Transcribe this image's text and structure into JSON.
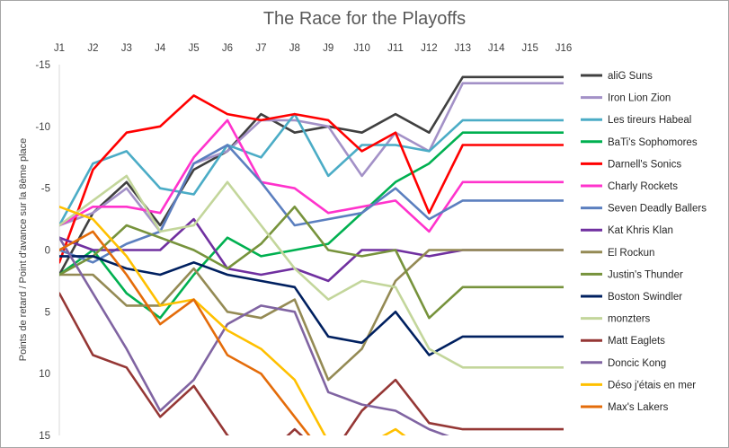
{
  "chart_data": {
    "type": "line",
    "title": "The Race for the Playoffs",
    "ylabel": "Points de retard / Point d'avance sur la 8ème place",
    "xlabel": "",
    "categories": [
      "J1",
      "J2",
      "J3",
      "J4",
      "J5",
      "J6",
      "J7",
      "J8",
      "J9",
      "J10",
      "J11",
      "J12",
      "J13",
      "J14",
      "J15",
      "J16"
    ],
    "ylim": [
      -15,
      15
    ],
    "y_inverted": true,
    "y_ticks": [
      -15,
      -10,
      -5,
      0,
      5,
      10,
      15
    ],
    "grid": false,
    "legend_position": "right",
    "series": [
      {
        "name": "aliG Suns",
        "color": "#404040",
        "values": [
          2,
          -3,
          -5.5,
          -2,
          -6.5,
          -8,
          -11,
          -9.5,
          -10,
          -9.5,
          -11,
          -9.5,
          -14,
          -14,
          -14,
          -14
        ]
      },
      {
        "name": "Iron Lion Zion",
        "color": "#a391c7",
        "values": [
          -2,
          -3,
          -5,
          -1.5,
          -7,
          -8,
          -10.5,
          -10.5,
          -10,
          -6,
          -9.5,
          -8,
          -13.5,
          -13.5,
          -13.5,
          -13.5
        ]
      },
      {
        "name": "Les tireurs Habeal",
        "color": "#4bacc6",
        "values": [
          -2,
          -7,
          -8,
          -5,
          -4.5,
          -8.5,
          -7.5,
          -11,
          -6,
          -8.5,
          -8.5,
          -8,
          -10.5,
          -10.5,
          -10.5,
          -10.5
        ]
      },
      {
        "name": "BaTi's Sophomores",
        "color": "#00b050",
        "values": [
          2,
          0,
          3.5,
          5.5,
          2,
          -1,
          0.5,
          0,
          -0.5,
          -3,
          -5.5,
          -7,
          -9.5,
          -9.5,
          -9.5,
          -9.5
        ]
      },
      {
        "name": "Darnell's Sonics",
        "color": "#ff0000",
        "values": [
          1,
          -6.5,
          -9.5,
          -10,
          -12.5,
          -11,
          -10.5,
          -11,
          -10.5,
          -8,
          -9.5,
          -3,
          -8.5,
          -8.5,
          -8.5,
          -8.5
        ]
      },
      {
        "name": "Charly Rockets",
        "color": "#ff33cc",
        "values": [
          -2,
          -3.5,
          -3.5,
          -3,
          -7.5,
          -10.5,
          -5.5,
          -5,
          -3,
          -3.5,
          -4,
          -1.5,
          -5.5,
          -5.5,
          -5.5,
          -5.5
        ]
      },
      {
        "name": "Seven Deadly Ballers",
        "color": "#5b7fbf",
        "values": [
          0,
          1,
          -0.5,
          -1.5,
          -7,
          -8.5,
          -5.5,
          -2,
          -2.5,
          -3,
          -5,
          -2.5,
          -4,
          -4,
          -4,
          -4
        ]
      },
      {
        "name": "Kat Khris Klan",
        "color": "#7030a0",
        "values": [
          -1,
          0,
          0,
          0,
          -2.5,
          1.5,
          2,
          1.5,
          2.5,
          0,
          0,
          0.5,
          0,
          0,
          0,
          0
        ]
      },
      {
        "name": "El Rockun",
        "color": "#948a54",
        "values": [
          2,
          2,
          4.5,
          4.5,
          1.5,
          5,
          5.5,
          4,
          10.5,
          8,
          2.5,
          0,
          0,
          0,
          0,
          0
        ]
      },
      {
        "name": "Justin's Thunder",
        "color": "#77933c",
        "values": [
          2,
          0.5,
          -2,
          -1,
          0,
          1.5,
          -0.5,
          -3.5,
          0,
          0.5,
          0,
          5.5,
          3,
          3,
          3,
          3
        ]
      },
      {
        "name": "Boston Swindler",
        "color": "#002060",
        "values": [
          0.5,
          0.5,
          1.5,
          2,
          1,
          2,
          2.5,
          3,
          7,
          7.5,
          5,
          8.5,
          7,
          7,
          7,
          7
        ]
      },
      {
        "name": "monzters",
        "color": "#c3d69b",
        "values": [
          -2,
          -4,
          -6,
          -1.5,
          -2,
          -5.5,
          -2,
          1.5,
          4,
          2.5,
          3,
          8,
          9.5,
          9.5,
          9.5,
          9.5
        ]
      },
      {
        "name": "Matt Eaglets",
        "color": "#953735",
        "values": [
          3.5,
          8.5,
          9.5,
          13.5,
          11,
          15,
          17,
          14.5,
          17,
          13,
          10.5,
          14,
          14.5,
          14.5,
          14.5,
          14.5
        ]
      },
      {
        "name": "Doncic Kong",
        "color": "#8064a2",
        "values": [
          -1,
          3.5,
          8,
          13,
          10.5,
          6,
          4.5,
          5,
          11.5,
          12.5,
          13,
          14.5,
          15.5,
          15.5,
          15.5,
          15.5
        ]
      },
      {
        "name": "Déso j'étais en mer",
        "color": "#ffc000",
        "values": [
          -3.5,
          -2.5,
          0.5,
          4.5,
          4,
          6.5,
          8,
          10.5,
          15.5,
          16,
          14.5,
          16.5,
          17,
          17,
          17,
          17
        ]
      },
      {
        "name": "Max's Lakers",
        "color": "#e46c0a",
        "values": [
          0,
          -1.5,
          2,
          6,
          4,
          8.5,
          10,
          13.5,
          17,
          17,
          17,
          17,
          17,
          17,
          17,
          17
        ]
      }
    ]
  }
}
